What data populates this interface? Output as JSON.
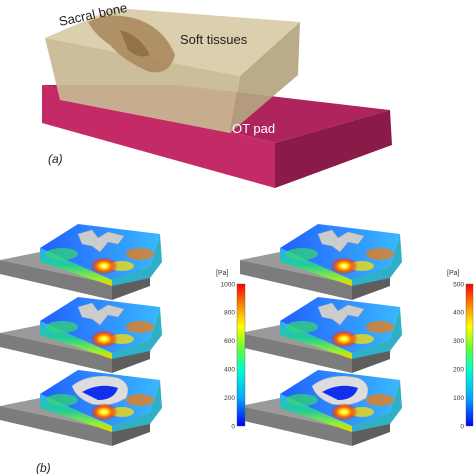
{
  "panel_a": {
    "label": "(a)",
    "labels": {
      "sacral_bone": "Sacral bone",
      "soft_tissues": "Soft tissues",
      "ot_pad": "OT pad"
    },
    "colors": {
      "pad": "#b0245e",
      "soft_tissue": "#cdbf9a",
      "bone": "#a8865a"
    }
  },
  "panel_b": {
    "label": "(b)",
    "colorbars": [
      {
        "unit": "[Pa]",
        "min": 0,
        "max": 1000,
        "ticks": [
          "1000",
          "800",
          "600",
          "400",
          "200",
          "0"
        ]
      },
      {
        "unit": "[Pa]",
        "min": 0,
        "max": 500,
        "ticks": [
          "500",
          "400",
          "300",
          "200",
          "100",
          "0"
        ]
      }
    ],
    "colormap": [
      "#0000ff",
      "#00aaff",
      "#00ffcc",
      "#66ff33",
      "#ffff00",
      "#ff8800",
      "#ff0000"
    ],
    "contour_models": [
      {
        "column": 1,
        "row": 1
      },
      {
        "column": 1,
        "row": 2
      },
      {
        "column": 1,
        "row": 3
      },
      {
        "column": 2,
        "row": 1
      },
      {
        "column": 2,
        "row": 2
      },
      {
        "column": 2,
        "row": 3
      }
    ]
  }
}
